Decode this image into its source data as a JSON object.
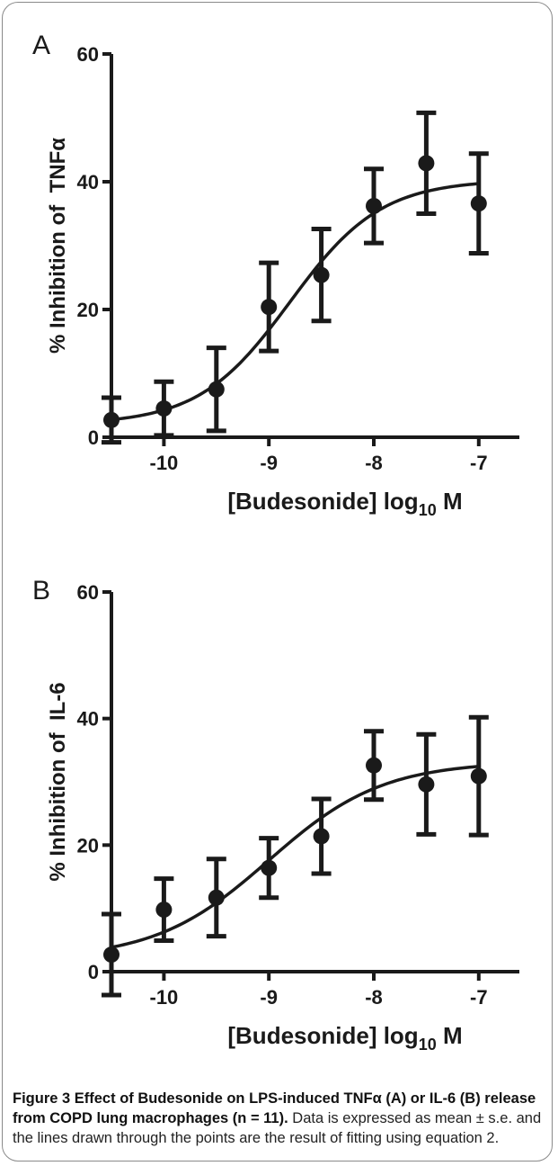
{
  "colors": {
    "ink": "#1a1a1a",
    "frame": "#8a8a8a"
  },
  "chart_data": [
    {
      "panel": "A",
      "type": "scatter",
      "ylabel": "% Inhibition of  TNFα",
      "xlabel_main": "[Budesonide] log",
      "xlabel_sub": "10",
      "xlabel_unit": "M",
      "xlim": [
        -10.5,
        -6.75
      ],
      "ylim": [
        0,
        60
      ],
      "x_ticks": [
        -10,
        -9,
        -8,
        -7
      ],
      "y_ticks": [
        0,
        20,
        40,
        60
      ],
      "grid": false,
      "legend": "none",
      "points": [
        {
          "x": -10.5,
          "y": 2.7,
          "err": 3.5
        },
        {
          "x": -10.0,
          "y": 4.5,
          "err": 4.2
        },
        {
          "x": -9.5,
          "y": 7.5,
          "err": 6.5
        },
        {
          "x": -9.0,
          "y": 20.4,
          "err": 6.9
        },
        {
          "x": -8.5,
          "y": 25.4,
          "err": 7.2
        },
        {
          "x": -8.0,
          "y": 36.2,
          "err": 5.8
        },
        {
          "x": -7.5,
          "y": 42.9,
          "err": 7.9
        },
        {
          "x": -7.0,
          "y": 36.6,
          "err": 7.8
        }
      ],
      "fit": {
        "bottom": 2,
        "top": 40.3,
        "logEC50": -8.8,
        "hill": 1.0
      }
    },
    {
      "panel": "B",
      "type": "scatter",
      "ylabel": "% Inhibition of  IL-6",
      "xlabel_main": "[Budesonide] log",
      "xlabel_sub": "10",
      "xlabel_unit": "M",
      "xlim": [
        -10.5,
        -6.75
      ],
      "ylim": [
        0,
        60
      ],
      "x_ticks": [
        -10,
        -9,
        -8,
        -7
      ],
      "y_ticks": [
        0,
        20,
        40,
        60
      ],
      "grid": false,
      "legend": "none",
      "points": [
        {
          "x": -10.5,
          "y": 2.7,
          "err": 6.4
        },
        {
          "x": -10.0,
          "y": 9.8,
          "err": 4.9
        },
        {
          "x": -9.5,
          "y": 11.7,
          "err": 6.1
        },
        {
          "x": -9.0,
          "y": 16.4,
          "err": 4.7
        },
        {
          "x": -8.5,
          "y": 21.4,
          "err": 5.9
        },
        {
          "x": -8.0,
          "y": 32.6,
          "err": 5.4
        },
        {
          "x": -7.5,
          "y": 29.6,
          "err": 7.9
        },
        {
          "x": -7.0,
          "y": 30.9,
          "err": 9.3
        }
      ],
      "fit": {
        "bottom": 2,
        "top": 33.2,
        "logEC50": -9.0,
        "hill": 0.8
      }
    }
  ],
  "caption": {
    "title": "Figure 3 Effect of Budesonide on LPS-induced TNFα (A) or IL-6 (B) release from COPD lung macrophages (n = 11).",
    "text": " Data is expressed as mean ± s.e. and the lines drawn through the points are the result of fitting using equation 2."
  }
}
